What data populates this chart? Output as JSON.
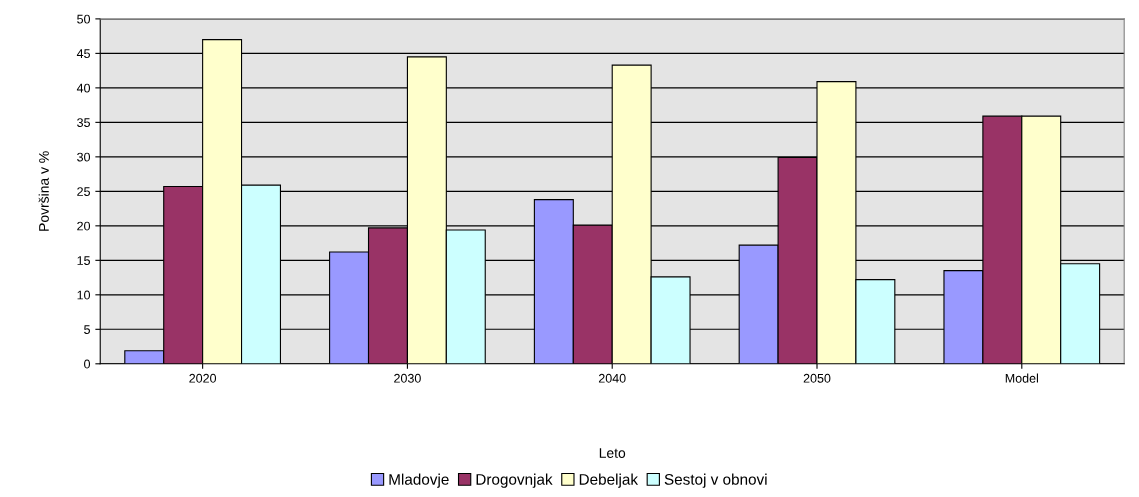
{
  "chart_data": {
    "type": "bar",
    "xlabel": "Leto",
    "ylabel": "Površina v %",
    "categories": [
      "2020",
      "2030",
      "2040",
      "2050",
      "Model"
    ],
    "series": [
      {
        "name": "Mladovje",
        "color": "#9999ff",
        "values": [
          1.9,
          16.2,
          23.8,
          17.2,
          13.5
        ]
      },
      {
        "name": "Drogovnjak",
        "color": "#993366",
        "values": [
          25.7,
          19.7,
          20.1,
          29.9,
          35.9
        ]
      },
      {
        "name": "Debeljak",
        "color": "#ffffcc",
        "values": [
          47.0,
          44.5,
          43.3,
          40.9,
          35.9
        ]
      },
      {
        "name": "Sestoj v obnovi",
        "color": "#ccffff",
        "values": [
          25.9,
          19.4,
          12.6,
          12.2,
          14.5
        ]
      }
    ],
    "ylim": [
      0,
      50
    ],
    "yticks": [
      0,
      5,
      10,
      15,
      20,
      25,
      30,
      35,
      40,
      45,
      50
    ],
    "grid": "y",
    "legend": "bottom"
  }
}
